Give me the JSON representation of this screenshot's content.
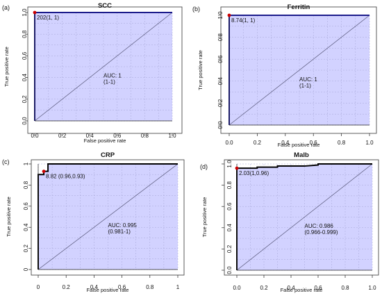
{
  "chart_data": [
    {
      "type": "line",
      "panel_label": "(a)",
      "title": "SCC",
      "xlabel": "False positive rate",
      "ylabel": "True positive rate",
      "xlim": [
        0,
        1
      ],
      "ylim": [
        0,
        1
      ],
      "grid": true,
      "xticks": [
        "0.0",
        "0.2",
        "0.4",
        "0.6",
        "0.8",
        "1.0"
      ],
      "yticks": [
        "0.0",
        "0.2",
        "0.4",
        "0.6",
        "0.8",
        "1.0"
      ],
      "series": [
        {
          "x": [
            0,
            0,
            1
          ],
          "y": [
            0,
            1,
            1
          ]
        }
      ],
      "diagonal": true,
      "cutoff_point": {
        "x": 0,
        "y": 1,
        "label": "202(1, 1)"
      },
      "auc_text": "AUC: 1",
      "ci_text": "(1-1)",
      "colors": {
        "fill": "#d2d2ff",
        "curve": "#1a1a8a",
        "point": "#cc0000"
      }
    },
    {
      "type": "line",
      "panel_label": "(b)",
      "title": "Ferritin",
      "xlabel": "False positive rate",
      "ylabel": "True positive rate",
      "xlim": [
        0,
        1
      ],
      "ylim": [
        0,
        1
      ],
      "grid": true,
      "xticks": [
        "0.0",
        "0.2",
        "0.4",
        "0.6",
        "0.8",
        "1.0"
      ],
      "yticks": [
        "0.0",
        "0.2",
        "0.4",
        "0.6",
        "0.8",
        "1.0"
      ],
      "series": [
        {
          "x": [
            0,
            0,
            1
          ],
          "y": [
            0,
            1,
            1
          ]
        }
      ],
      "diagonal": true,
      "cutoff_point": {
        "x": 0,
        "y": 1,
        "label": "8.74(1, 1)"
      },
      "auc_text": "AUC: 1",
      "ci_text": "(1-1)",
      "colors": {
        "fill": "#d2d2ff",
        "curve": "#1a1a8a",
        "point": "#cc0000"
      }
    },
    {
      "type": "line",
      "panel_label": "(c)",
      "title": "CRP",
      "xlabel": "False positive rate",
      "ylabel": "True positive rate",
      "xlim": [
        0,
        1
      ],
      "ylim": [
        0,
        1
      ],
      "grid": true,
      "xticks": [
        "0",
        "0.2",
        "0.4",
        "0.6",
        "0.8",
        "1"
      ],
      "yticks": [
        "0",
        "0.2",
        "0.4",
        "0.6",
        "0.8",
        "1"
      ],
      "series": [
        {
          "x": [
            0,
            0,
            0.04,
            0.04,
            0.07,
            0.07,
            1
          ],
          "y": [
            0,
            0.9,
            0.9,
            0.93,
            0.93,
            1,
            1
          ]
        }
      ],
      "diagonal": true,
      "cutoff_point": {
        "x": 0.04,
        "y": 0.93,
        "label": "8.82 (0.96,0.93)"
      },
      "auc_text": "AUC: 0.995",
      "ci_text": "(0.981-1)",
      "colors": {
        "fill": "#d2d2ff",
        "curve": "#000000",
        "point": "#cc0000"
      }
    },
    {
      "type": "line",
      "panel_label": "(d)",
      "title": "Malb",
      "xlabel": "False positive rate",
      "ylabel": "True positive rate",
      "xlim": [
        0,
        1
      ],
      "ylim": [
        0,
        1
      ],
      "grid": true,
      "xticks": [
        "0.0",
        "0.2",
        "0.4",
        "0.6",
        "0.8",
        "1.0"
      ],
      "yticks": [
        "0.0",
        "0.2",
        "0.4",
        "0.6",
        "0.8",
        "1.0"
      ],
      "series": [
        {
          "x": [
            0,
            0,
            0.15,
            0.15,
            0.3,
            0.3,
            0.5,
            0.6,
            0.6,
            1
          ],
          "y": [
            0,
            0.96,
            0.96,
            0.97,
            0.97,
            0.98,
            0.98,
            0.99,
            1,
            1
          ]
        }
      ],
      "diagonal": true,
      "cutoff_point": {
        "x": 0,
        "y": 0.96,
        "label": "2.03(1,0.96)"
      },
      "auc_text": "AUC: 0.986",
      "ci_text": "(0.966-0.999)",
      "colors": {
        "fill": "#d2d2ff",
        "curve": "#000000",
        "point": "#cc0000"
      }
    }
  ]
}
